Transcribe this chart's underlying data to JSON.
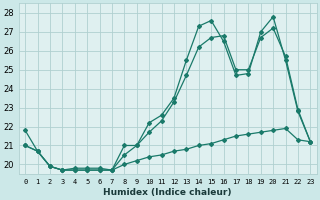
{
  "xlabel": "Humidex (Indice chaleur)",
  "bg_color": "#cce8e8",
  "plot_bg_color": "#dff0f0",
  "grid_color": "#b0d0d0",
  "line_color": "#1a7a6a",
  "xlim": [
    -0.5,
    23.5
  ],
  "ylim": [
    19.5,
    28.5
  ],
  "yticks": [
    20,
    21,
    22,
    23,
    24,
    25,
    26,
    27,
    28
  ],
  "xticks": [
    0,
    1,
    2,
    3,
    4,
    5,
    6,
    7,
    8,
    9,
    10,
    11,
    12,
    13,
    14,
    15,
    16,
    17,
    18,
    19,
    20,
    21,
    22,
    23
  ],
  "line1_x": [
    0,
    1,
    2,
    3,
    4,
    5,
    6,
    7,
    8,
    9,
    10,
    11,
    12,
    13,
    14,
    15,
    16,
    17,
    18,
    19,
    20,
    21,
    22,
    23
  ],
  "line1_y": [
    21.8,
    20.7,
    19.9,
    19.7,
    19.7,
    19.7,
    19.7,
    19.7,
    21.0,
    21.0,
    22.2,
    22.6,
    23.5,
    25.5,
    27.3,
    27.6,
    26.5,
    24.7,
    24.8,
    27.0,
    27.8,
    25.5,
    22.8,
    21.2
  ],
  "line2_x": [
    0,
    1,
    2,
    3,
    4,
    5,
    6,
    7,
    8,
    9,
    10,
    11,
    12,
    13,
    14,
    15,
    16,
    17,
    18,
    19,
    20,
    21,
    22,
    23
  ],
  "line2_y": [
    21.0,
    20.7,
    19.9,
    19.7,
    19.7,
    19.7,
    19.7,
    19.7,
    20.5,
    21.0,
    21.7,
    22.3,
    23.3,
    24.7,
    26.2,
    26.7,
    26.8,
    25.0,
    25.0,
    26.7,
    27.2,
    25.7,
    22.9,
    21.2
  ],
  "line3_x": [
    0,
    1,
    2,
    3,
    4,
    5,
    6,
    7,
    8,
    9,
    10,
    11,
    12,
    13,
    14,
    15,
    16,
    17,
    18,
    19,
    20,
    21,
    22,
    23
  ],
  "line3_y": [
    21.0,
    20.7,
    19.9,
    19.7,
    19.8,
    19.8,
    19.8,
    19.7,
    20.0,
    20.2,
    20.4,
    20.5,
    20.7,
    20.8,
    21.0,
    21.1,
    21.3,
    21.5,
    21.6,
    21.7,
    21.8,
    21.9,
    21.3,
    21.2
  ]
}
